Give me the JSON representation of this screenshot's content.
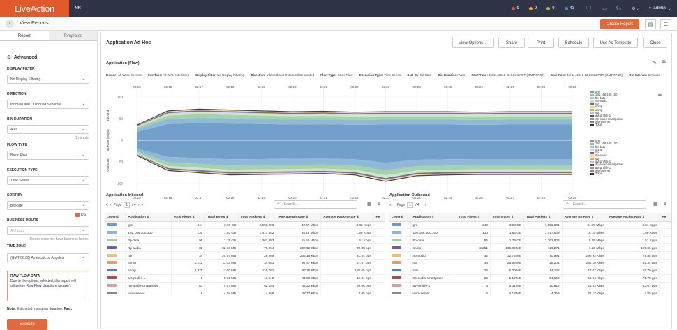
{
  "topbar": {
    "logo": "LiveAction",
    "nr": "NR",
    "alerts": [
      {
        "count": "0",
        "color": "#e05a2b"
      },
      {
        "count": "0",
        "color": "#e8a13a"
      },
      {
        "count": "0",
        "color": "#8bc34a"
      },
      {
        "count": "43",
        "color": "#4a90c8"
      }
    ],
    "user": "admin"
  },
  "subbar": {
    "title": "View Reports",
    "create_label": "Create Report"
  },
  "sidebar": {
    "tabs": [
      "Report",
      "Templates"
    ],
    "advanced": "Advanced",
    "display_filter": {
      "label": "DISPLAY FILTER",
      "value": "No Display Filtering"
    },
    "direction": {
      "label": "DIRECTION",
      "value": "Inbound and Outbound Separate..."
    },
    "bin_duration": {
      "label": "BIN DURATION",
      "value": "Auto",
      "hint": "1 minute"
    },
    "flow_type": {
      "label": "FLOW TYPE",
      "value": "Basic Flow"
    },
    "execution_type": {
      "label": "EXECUTION TYPE",
      "value": "Time Series"
    },
    "sort_by": {
      "label": "SORT BY",
      "value": "Bit Rate"
    },
    "business_hours": {
      "label": "BUSINESS HOURS",
      "value": "All Hours",
      "hint": "Device does not have business hours."
    },
    "time_zone": {
      "label": "TIME ZONE",
      "value": "(GMT-08:00) America/Los Angeles",
      "dst": "DST"
    },
    "raw": {
      "title": "RAW FLOW DATA",
      "text": "Due to the options selected, this report will utilize the Raw Flow datastore (slower)."
    },
    "note_prefix": "Note:",
    "note": "Estimated execution duration:",
    "note_value": "Fast.",
    "execute": "Execute"
  },
  "main": {
    "title": "Application Ad Hoc",
    "buttons": [
      "View Options",
      "Share",
      "Print",
      "Schedule",
      "Use As Template",
      "Close"
    ],
    "panel_title": "Application (Flow)",
    "meta": [
      [
        "Device:",
        "All WAN Devices"
      ],
      [
        "Interface:",
        "All WAN Interfaces"
      ],
      [
        "Display Filter:",
        "No Display Filtering"
      ],
      [
        "Direction:",
        "Inbound and Outbound Separated"
      ],
      [
        "Flow Type:",
        "Basic Flow"
      ],
      [
        "Execution Type:",
        "Time Series"
      ],
      [
        "Sort By:",
        "Bit Rate"
      ],
      [
        "Bin Duration:",
        "Auto"
      ],
      [
        "Start Time:",
        "Jul 11, 2018 02:14:34 PDT (GMT-07:00)"
      ],
      [
        "End Time:",
        "Jul 11, 2018 02:29:34 PDT (GMT-07:00)"
      ],
      [
        "Bin Interval:",
        "1 minute"
      ]
    ]
  },
  "chart_data": {
    "type": "area",
    "x_ticks": [
      "02:15",
      "02:16",
      "02:17",
      "02:18",
      "02:19",
      "02:20",
      "02:21",
      "02:22",
      "02:23",
      "02:24",
      "02:25",
      "02:26",
      "02:27",
      "02:28",
      "02:29"
    ],
    "x_ticks_bottom": [
      "02:15",
      "02:16",
      "02:17",
      "02:18",
      "02:19",
      "02:20",
      "02:21",
      "02:22",
      "02:23",
      "02:24",
      "02:25",
      "02:26",
      "02:27",
      "02:28",
      "02:29"
    ],
    "y_ticks": [
      "100",
      "50",
      "0",
      "50",
      "100"
    ],
    "ylabel_inbound": "Inbound",
    "ylabel_outbound": "Outbound",
    "ylabel": "Bit Rate (Mbps)",
    "legend": [
      {
        "name": "gre",
        "color": "#6b9bc8"
      },
      {
        "name": "192.168.100.100",
        "color": "#8ab5d6"
      },
      {
        "name": "ftp-data",
        "color": "#9fd0a8"
      },
      {
        "name": "rtp-audio",
        "color": "#c8e6c0"
      },
      {
        "name": "rtp",
        "color": "#7b5ea7"
      },
      {
        "name": "snmp",
        "color": "#f0d48a"
      },
      {
        "name": "snmp",
        "color": "#e5a66a"
      },
      {
        "name": "ssh",
        "color": "#c0c0c0"
      },
      {
        "name": "avt-profile-1",
        "color": "#555555"
      },
      {
        "name": "rtp-audio-smartprobe",
        "color": "#d08080"
      },
      {
        "name": "wsm-server",
        "color": "#888888"
      },
      {
        "name": "Total",
        "color": "#333333"
      }
    ],
    "legend_out": [
      {
        "name": "gre",
        "color": "#6b9bc8"
      },
      {
        "name": "192.168.100.100",
        "color": "#8ab5d6"
      },
      {
        "name": "ftp-data",
        "color": "#9fd0a8"
      },
      {
        "name": "snmp",
        "color": "#c8e6c0"
      },
      {
        "name": "rtp",
        "color": "#7b5ea7"
      },
      {
        "name": "rtp-audio",
        "color": "#f0d48a"
      },
      {
        "name": "ssh",
        "color": "#e5a66a"
      },
      {
        "name": "avt-profile-1",
        "color": "#c0c0c0"
      },
      {
        "name": "rtp-audio-smartprobe",
        "color": "#555555"
      },
      {
        "name": "avt-profile-1",
        "color": "#d08080"
      },
      {
        "name": "wsm-server",
        "color": "#888888"
      },
      {
        "name": "Total",
        "color": "#333333"
      }
    ],
    "inbound_total": [
      35,
      68,
      72,
      70,
      68,
      66,
      67,
      65,
      66,
      66,
      66,
      65,
      66,
      66,
      66
    ],
    "outbound_total": [
      35,
      70,
      75,
      80,
      79,
      78,
      77,
      80,
      95,
      82,
      80,
      79,
      79,
      79,
      79
    ],
    "inbound_layers": [
      0.55,
      0.17,
      0.12,
      0.08,
      0.04,
      0.04
    ],
    "outbound_layers": [
      0.55,
      0.18,
      0.12,
      0.07,
      0.04,
      0.04
    ]
  },
  "tables": {
    "inbound": {
      "title": "Application Inbound",
      "page_label": "Page",
      "page": "1",
      "page_of": "/ 4",
      "search": "Search...",
      "columns": [
        "Legend",
        "Application",
        "Total Flows",
        "Total Bytes",
        "Total Packets",
        "Average Bit Rate",
        "Average Packet Rate",
        "Pe"
      ],
      "rows": [
        [
          "#6b9bc8",
          "gre",
          "244",
          "3.68 GB",
          "2,992,006",
          "32.67 Mbps",
          "3.32 Kpps"
        ],
        [
          "#8ab5d6",
          "192.168.100.100",
          "130",
          "1.82 GB",
          "1,417,552",
          "16.15 Mbps",
          "1.58 Kpps"
        ],
        [
          "#9fd0a8",
          "ftp-data",
          "96",
          "1.75 GB",
          "1,362,803",
          "15.55 Mbps",
          "1.51 Kpps"
        ],
        [
          "#7b5ea7",
          "rtp-audio",
          "32",
          "32.73 MB",
          "70,994",
          "290.92 Kbps",
          "78.88 pps"
        ],
        [
          "#e8c26a",
          "rtp",
          "34",
          "26.57 MB",
          "28,209",
          "236.16 Kbps",
          "31.34 pps"
        ],
        [
          "#e89a6a",
          "snmp",
          "1,212",
          "11.02 MB",
          "34,081",
          "97.97 Kbps",
          "37.87 pps"
        ],
        [
          "#5a7fb0",
          "snmp",
          "2,375",
          "11.00 MB",
          "115,781",
          "97.75 Kbps",
          "128.65 pps"
        ],
        [
          "#a85050",
          "avt-profile-1",
          "6",
          "5.01 MB",
          "10,812",
          "44.53 Kbps",
          "12.01 pps"
        ],
        [
          "#d8a0a0",
          "rtp-audio-smartprobe",
          "63",
          "4.97 MB",
          "62,154",
          "44.22 Kbps",
          "69.06 pps"
        ],
        [
          "#888888",
          "wsm-server",
          "6",
          "4.18 MB",
          "4,368",
          "37.17 Kbps",
          "4.85 pps"
        ]
      ]
    },
    "outbound": {
      "title": "Application Outbound",
      "page_label": "Page",
      "page": "1",
      "page_of": "/ 4",
      "search": "Search...",
      "columns": [
        "Legend",
        "Application",
        "Total Flows",
        "Total Bytes",
        "Total Packets",
        "Average Bit Rate",
        "Average Packet Rate",
        "Pe"
      ],
      "rows": [
        [
          "#6b9bc8",
          "gre",
          "248",
          "3.94 GB",
          "3,158,081",
          "34.98 Mbps",
          "3.51 Kpps"
        ],
        [
          "#8ab5d6",
          "192.168.100.100",
          "130",
          "1.82 GB",
          "1,417,539",
          "16.15 Mbps",
          "1.58 Kpps"
        ],
        [
          "#9fd0a8",
          "ftp-data",
          "96",
          "1.75 GB",
          "1,362,803",
          "15.55 Mbps",
          "1.51 Kpps"
        ],
        [
          "#7b5ea7",
          "snmp",
          "2,251",
          "135.39 MB",
          "113,271",
          "1.20 Mbps",
          "125.86 pps"
        ],
        [
          "#e8c26a",
          "rtp-audio",
          "32",
          "32.73 MB",
          "70,994",
          "290.92 Kbps",
          "78.88 pps"
        ],
        [
          "#e89a6a",
          "rtp",
          "34",
          "26.56 MB",
          "28,204",
          "236.10 Kbps",
          "31.34 pps"
        ],
        [
          "#5a7fb0",
          "ssh",
          "24",
          "5.30 MB",
          "14,128",
          "47.07 Kbps",
          "15.70 pps"
        ],
        [
          "#a85050",
          "rtp-audio-smartprobe",
          "66",
          "5.17 MB",
          "64,596",
          "45.94 Kbps",
          "71.78 pps"
        ],
        [
          "#d8a0a0",
          "avt-profile-1",
          "6",
          "5.01 MB",
          "10,812",
          "44.53 Kbps",
          "12.01 pps"
        ],
        [
          "#888888",
          "wsm-server",
          "6",
          "4.18 MB",
          "4,368",
          "37.17 Kbps",
          "4.85 pps"
        ]
      ]
    }
  }
}
